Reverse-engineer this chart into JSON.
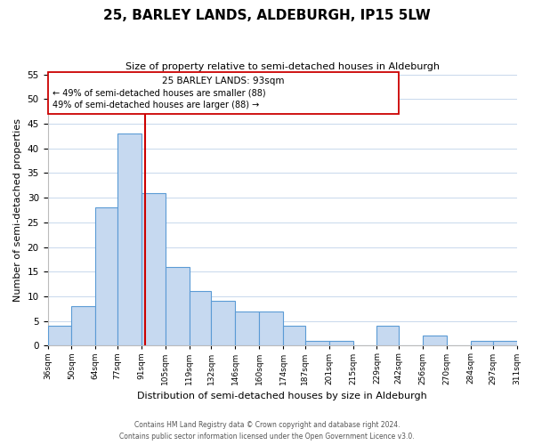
{
  "title": "25, BARLEY LANDS, ALDEBURGH, IP15 5LW",
  "subtitle": "Size of property relative to semi-detached houses in Aldeburgh",
  "xlabel": "Distribution of semi-detached houses by size in Aldeburgh",
  "ylabel": "Number of semi-detached properties",
  "bar_color": "#c6d9f0",
  "bar_edge_color": "#5b9bd5",
  "property_line_color": "#cc0000",
  "property_value": 93,
  "property_label": "25 BARLEY LANDS: 93sqm",
  "pct_smaller": 49,
  "pct_larger": 49,
  "n_smaller": 88,
  "n_larger": 88,
  "bins": [
    36,
    50,
    64,
    77,
    91,
    105,
    119,
    132,
    146,
    160,
    174,
    187,
    201,
    215,
    229,
    242,
    256,
    270,
    284,
    297,
    311
  ],
  "counts": [
    4,
    8,
    28,
    43,
    31,
    16,
    11,
    9,
    7,
    7,
    4,
    1,
    1,
    0,
    4,
    0,
    2,
    0,
    1,
    1
  ],
  "ylim": [
    0,
    55
  ],
  "yticks": [
    0,
    5,
    10,
    15,
    20,
    25,
    30,
    35,
    40,
    45,
    50,
    55
  ],
  "footnote1": "Contains HM Land Registry data © Crown copyright and database right 2024.",
  "footnote2": "Contains public sector information licensed under the Open Government Licence v3.0.",
  "annotation_box_color": "#ffffff",
  "annotation_box_edge": "#cc0000",
  "background_color": "#ffffff",
  "grid_color": "#c8d8ec"
}
